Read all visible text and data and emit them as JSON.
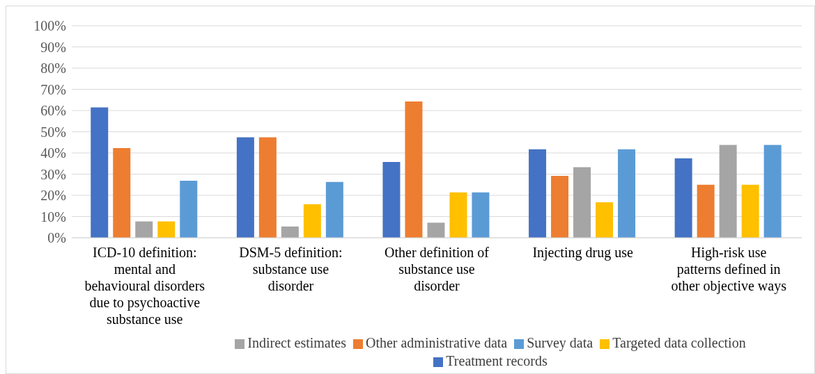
{
  "chart_data": {
    "type": "bar",
    "categories": [
      "ICD-10 definition: mental and behavioural disorders due to psychoactive substance use",
      "DSM-5 definition: substance use disorder",
      "Other definition of substance use disorder",
      "Injecting drug use",
      "High-risk use patterns defined in other objective ways"
    ],
    "series": [
      {
        "name": "Treatment records",
        "color": "#4472c4",
        "values": [
          61.5,
          47.4,
          35.7,
          41.7,
          37.5
        ]
      },
      {
        "name": "Other administrative data",
        "color": "#ed7d31",
        "values": [
          42.3,
          47.4,
          64.3,
          29.2,
          25
        ]
      },
      {
        "name": "Indirect estimates",
        "color": "#a5a5a5",
        "values": [
          7.7,
          5.3,
          7.1,
          33.3,
          43.8
        ]
      },
      {
        "name": "Targeted data collection",
        "color": "#ffc000",
        "values": [
          7.7,
          15.8,
          21.4,
          16.7,
          25
        ]
      },
      {
        "name": "Survey data",
        "color": "#5b9bd5",
        "values": [
          26.9,
          26.3,
          21.4,
          41.7,
          43.8
        ]
      }
    ],
    "ylim": [
      0,
      100
    ],
    "yticks": [
      {
        "value": 0,
        "label": "0%"
      },
      {
        "value": 10,
        "label": "10%"
      },
      {
        "value": 20,
        "label": "20%"
      },
      {
        "value": 30,
        "label": "30%"
      },
      {
        "value": 40,
        "label": "40%"
      },
      {
        "value": 50,
        "label": "50%"
      },
      {
        "value": 60,
        "label": "60%"
      },
      {
        "value": 70,
        "label": "70%"
      },
      {
        "value": 80,
        "label": "80%"
      },
      {
        "value": 90,
        "label": "90%"
      },
      {
        "value": 100,
        "label": "100%"
      }
    ],
    "grid": "y",
    "legend": "bottom"
  }
}
